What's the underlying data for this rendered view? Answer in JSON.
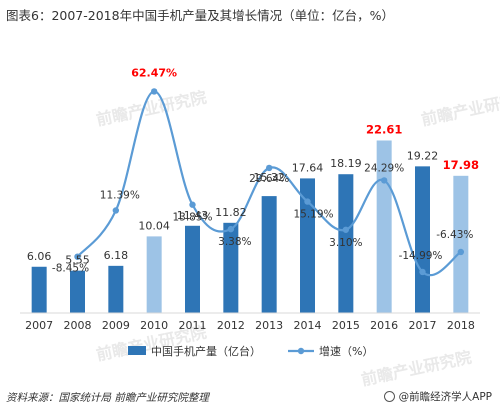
{
  "title": "图表6：2007-2018年中国手机产量及其增长情况（单位：亿台，%）",
  "source": "资料来源：国家统计局 前瞻产业研究院整理",
  "brand": "@前瞻经济学人APP",
  "watermark": "前瞻产业研究院",
  "colors": {
    "bar": "#2e75b6",
    "bar_light": "#9dc3e6",
    "line": "#5b9bd5",
    "highlight": "#ff0000",
    "text": "#333333"
  },
  "chart_data": {
    "type": "bar",
    "categories": [
      "2007",
      "2008",
      "2009",
      "2010",
      "2011",
      "2012",
      "2013",
      "2014",
      "2015",
      "2016",
      "2017",
      "2018"
    ],
    "series": [
      {
        "name": "中国手机产量（亿台）",
        "type": "bar",
        "values": [
          6.06,
          5.55,
          6.18,
          10.04,
          11.43,
          11.82,
          15.32,
          17.64,
          18.19,
          22.61,
          19.22,
          17.98
        ],
        "labels": [
          "6.06",
          "5.55",
          "6.18",
          "10.04",
          "11.43",
          "11.82",
          "15.32",
          "17.64",
          "18.19",
          "22.61",
          "19.22",
          "17.98"
        ],
        "light": [
          false,
          false,
          false,
          true,
          false,
          false,
          false,
          false,
          false,
          true,
          false,
          true
        ],
        "red_labels": [
          false,
          false,
          false,
          false,
          false,
          false,
          false,
          false,
          false,
          true,
          false,
          true
        ]
      },
      {
        "name": "增速（%）",
        "type": "line",
        "values": [
          null,
          -8.45,
          11.39,
          62.47,
          13.85,
          3.38,
          29.64,
          15.19,
          3.1,
          24.29,
          -14.99,
          -6.43
        ],
        "labels": [
          "",
          "-8.45%",
          "11.39%",
          "62.47%",
          "13.85%",
          "3.38%",
          "29.64%",
          "15.19%",
          "3.10%",
          "24.29%",
          "-14.99%",
          "-6.43%"
        ],
        "red_labels": [
          false,
          false,
          false,
          true,
          false,
          false,
          false,
          false,
          false,
          false,
          false,
          false
        ]
      }
    ],
    "legend_position": "bottom",
    "grid": false
  }
}
